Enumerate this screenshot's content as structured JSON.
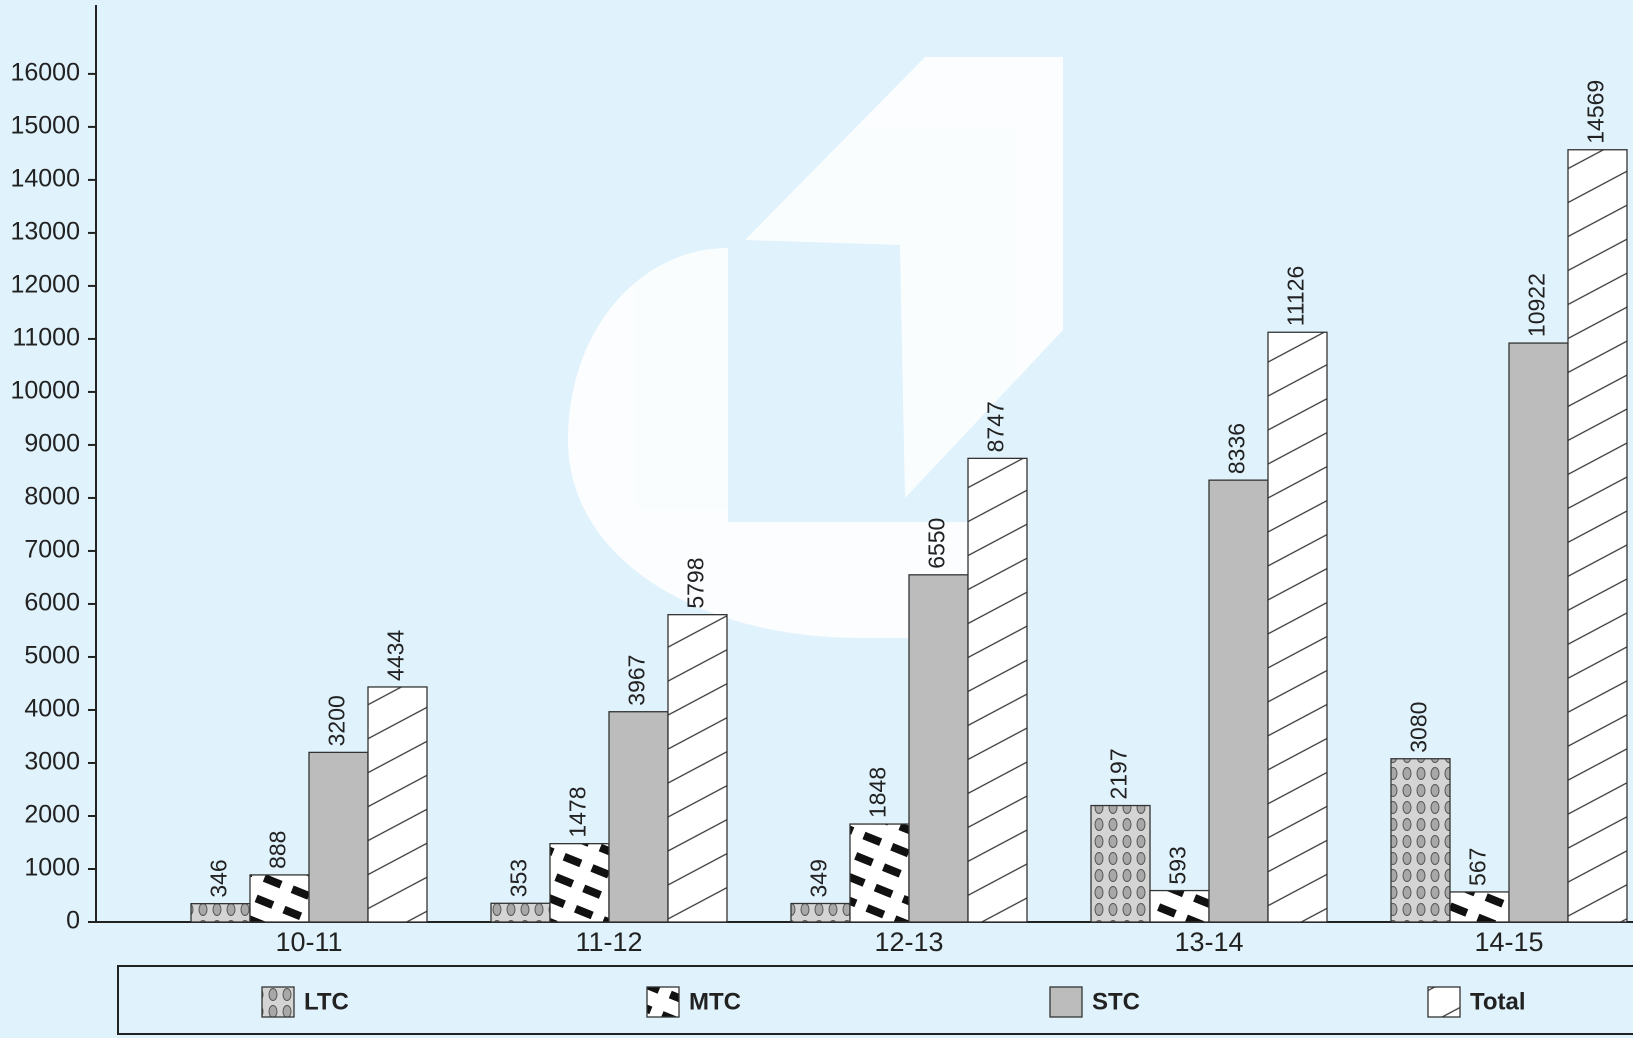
{
  "chart_data": {
    "type": "bar",
    "categories": [
      "10-11",
      "11-12",
      "12-13",
      "13-14",
      "14-15"
    ],
    "series": [
      {
        "name": "LTC",
        "color": "#d4d4d4",
        "pattern": "dots",
        "values": [
          346,
          353,
          349,
          2197,
          3080
        ]
      },
      {
        "name": "MTC",
        "color": "#ffffff",
        "pattern": "dashes",
        "values": [
          888,
          1478,
          1848,
          593,
          567
        ]
      },
      {
        "name": "STC",
        "color": "#bcbcbc",
        "pattern": "solid",
        "values": [
          3200,
          3967,
          6550,
          8336,
          10922
        ]
      },
      {
        "name": "Total",
        "color": "#ffffff",
        "pattern": "hatch",
        "values": [
          4434,
          5798,
          8747,
          11126,
          14569
        ]
      }
    ],
    "ylim": [
      0,
      17300
    ],
    "yticks": [
      0,
      1000,
      2000,
      3000,
      4000,
      5000,
      6000,
      7000,
      8000,
      9000,
      10000,
      11000,
      12000,
      13000,
      14000,
      15000,
      16000
    ],
    "legend": "bottom"
  }
}
